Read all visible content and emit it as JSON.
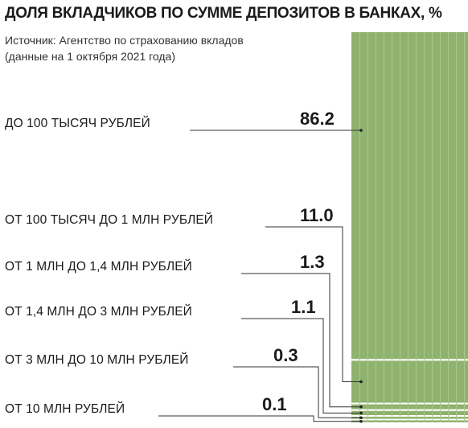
{
  "header": {
    "title": "ДОЛЯ ВКЛАДЧИКОВ ПО СУММЕ ДЕПОЗИТОВ В БАНКАХ, %",
    "source_line1": "Источник: Агентство по страхованию вкладов",
    "source_line2": "(данные на 1 октября 2021 года)"
  },
  "colors": {
    "bar": "#8fb36f",
    "stripe": "#a9c78d",
    "separator": "#ffffff",
    "leader": "#333333"
  },
  "chart_data": {
    "type": "bar",
    "title": "ДОЛЯ ВКЛАДЧИКОВ ПО СУММЕ ДЕПОЗИТОВ В БАНКАХ, %",
    "categories": [
      "ДО 100 ТЫСЯЧ РУБЛЕЙ",
      "ОТ 100 ТЫСЯЧ ДО 1 МЛН РУБЛЕЙ",
      "ОТ 1 МЛН ДО 1,4 МЛН РУБЛЕЙ",
      "ОТ 1,4 МЛН ДО 3 МЛН РУБЛЕЙ",
      "ОТ 3 МЛН ДО 10 МЛН РУБЛЕЙ",
      "ОТ 10 МЛН РУБЛЕЙ"
    ],
    "values": [
      86.2,
      11.0,
      1.3,
      1.1,
      0.3,
      0.1
    ],
    "value_labels": [
      "86.2",
      "11.0",
      "1.3",
      "1.1",
      "0.3",
      "0.1"
    ],
    "stacked": true,
    "total": 100
  }
}
